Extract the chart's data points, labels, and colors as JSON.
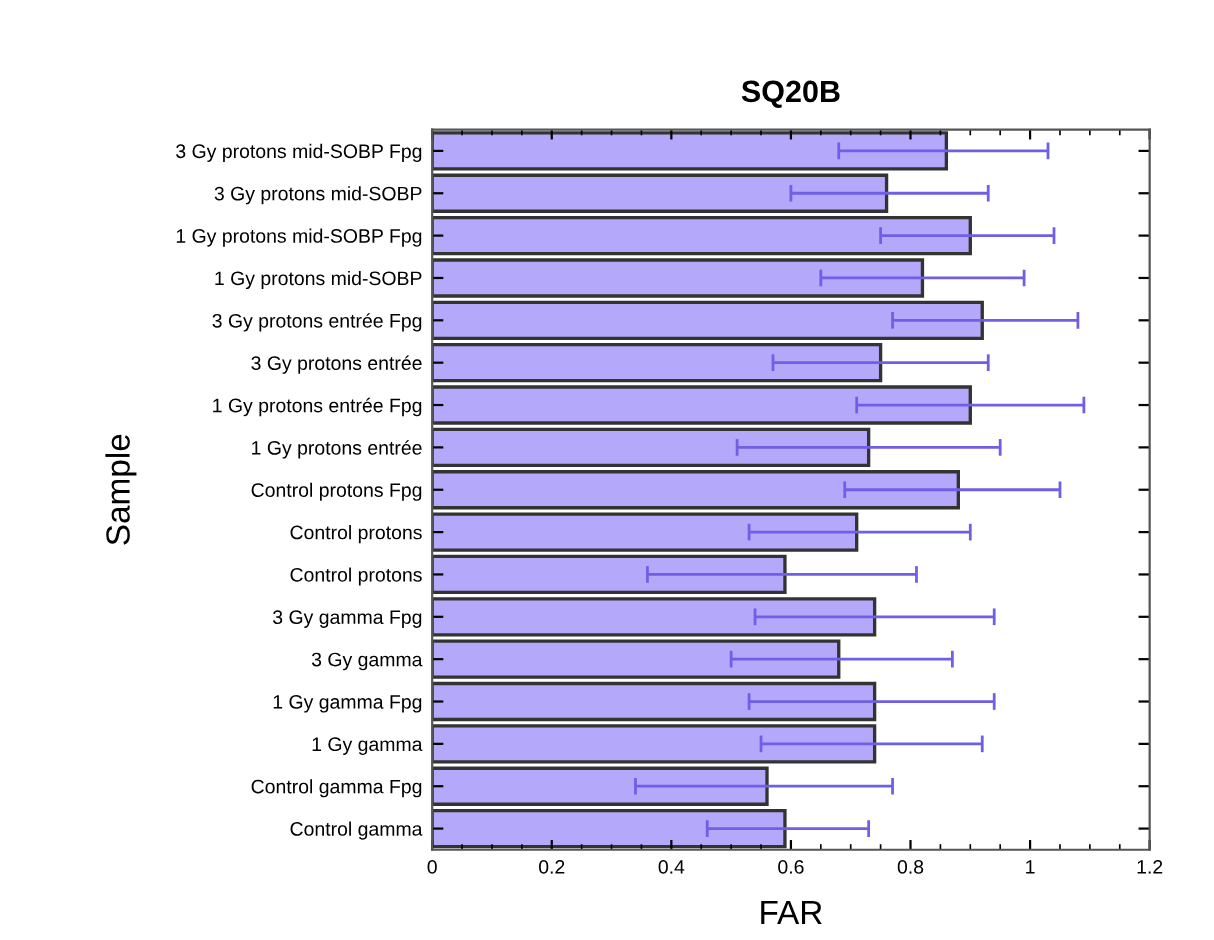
{
  "chart_data": {
    "type": "bar",
    "orientation": "horizontal",
    "title": "SQ20B",
    "xlabel": "FAR",
    "ylabel": "Sample",
    "categories": [
      "3 Gy protons mid-SOBP Fpg",
      "3 Gy protons mid-SOBP",
      "1 Gy protons mid-SOBP Fpg",
      "1 Gy protons mid-SOBP",
      "3 Gy protons entrée Fpg",
      "3 Gy protons entrée",
      "1 Gy protons entrée Fpg",
      "1 Gy protons entrée",
      "Control protons Fpg",
      "Control protons",
      "Control protons",
      "3 Gy gamma Fpg",
      "3 Gy gamma",
      "1 Gy gamma Fpg",
      "1 Gy gamma",
      "Control gamma Fpg",
      "Control gamma"
    ],
    "values": [
      0.86,
      0.76,
      0.9,
      0.82,
      0.92,
      0.75,
      0.9,
      0.73,
      0.88,
      0.71,
      0.59,
      0.74,
      0.68,
      0.74,
      0.74,
      0.56,
      0.59
    ],
    "errors": [
      [
        0.68,
        1.03
      ],
      [
        0.6,
        0.93
      ],
      [
        0.75,
        1.04
      ],
      [
        0.65,
        0.99
      ],
      [
        0.77,
        1.08
      ],
      [
        0.57,
        0.93
      ],
      [
        0.71,
        1.09
      ],
      [
        0.51,
        0.95
      ],
      [
        0.69,
        1.05
      ],
      [
        0.53,
        0.9
      ],
      [
        0.36,
        0.81
      ],
      [
        0.54,
        0.94
      ],
      [
        0.5,
        0.87
      ],
      [
        0.53,
        0.94
      ],
      [
        0.55,
        0.92
      ],
      [
        0.34,
        0.77
      ],
      [
        0.46,
        0.73
      ]
    ],
    "color": "#b4a8fb",
    "xlim": [
      0,
      1.2
    ],
    "xticks": [
      0,
      0.2,
      0.4,
      0.6,
      0.8,
      1,
      1.2
    ],
    "grid": false
  }
}
